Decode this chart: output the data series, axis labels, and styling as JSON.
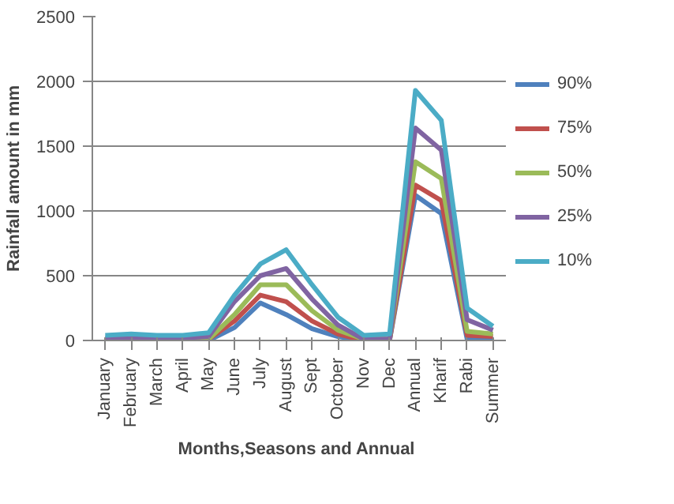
{
  "chart_data": {
    "type": "line",
    "xlabel": "Months,Seasons  and Annual",
    "ylabel": "Rainfall amount in mm",
    "categories": [
      "January",
      "February",
      "March",
      "April",
      "May",
      "June",
      "July",
      "August",
      "Sept",
      "October",
      "Nov",
      "Dec",
      "Annual",
      "Kharif",
      "Rabi",
      "Summer"
    ],
    "ylim": [
      0,
      2500
    ],
    "yticks": [
      0,
      500,
      1000,
      1500,
      2000,
      2500
    ],
    "grid": "y",
    "legend": "right",
    "marker": "none",
    "line_style": "solid",
    "series": [
      {
        "name": "90%",
        "color": "#4f81bd",
        "values": [
          0,
          0,
          0,
          0,
          0,
          100,
          290,
          200,
          90,
          30,
          0,
          0,
          1120,
          980,
          10,
          10
        ]
      },
      {
        "name": "75%",
        "color": "#c0504d",
        "values": [
          null,
          null,
          null,
          0,
          10,
          150,
          350,
          300,
          150,
          50,
          0,
          0,
          1200,
          1080,
          40,
          30
        ]
      },
      {
        "name": "50%",
        "color": "#9bbb59",
        "values": [
          null,
          null,
          null,
          10,
          10,
          200,
          430,
          430,
          230,
          80,
          10,
          10,
          1380,
          1250,
          70,
          50
        ]
      },
      {
        "name": "25%",
        "color": "#8064a2",
        "values": [
          20,
          20,
          20,
          20,
          30,
          300,
          500,
          555,
          320,
          120,
          10,
          10,
          1640,
          1470,
          160,
          80
        ]
      },
      {
        "name": "10%",
        "color": "#4bacc6",
        "values": [
          40,
          50,
          40,
          40,
          60,
          350,
          590,
          700,
          430,
          180,
          40,
          50,
          1930,
          1700,
          250,
          110
        ]
      }
    ]
  }
}
